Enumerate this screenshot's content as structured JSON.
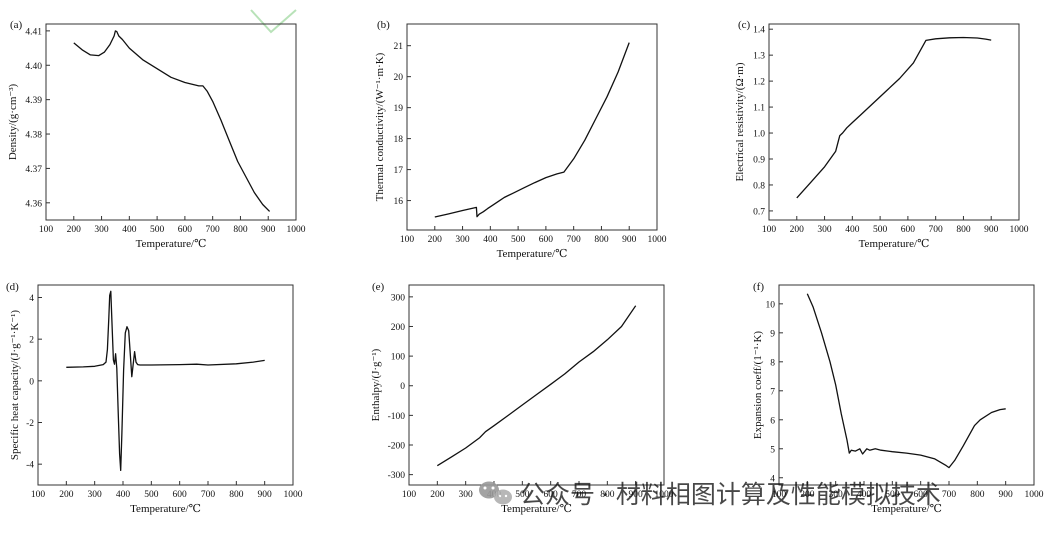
{
  "chart_data": [
    {
      "type": "line",
      "panel_label": "(a)",
      "xlabel": "Temperature/℃",
      "ylabel": "Density/(g·cm⁻³)",
      "xlim": [
        100,
        1000
      ],
      "ylim": [
        4.355,
        4.412
      ],
      "xticks": [
        100,
        200,
        300,
        400,
        500,
        600,
        700,
        800,
        900,
        1000
      ],
      "xtick_labels": [
        "100",
        "200",
        "300",
        "400",
        "500",
        "600",
        "700",
        "800",
        "900",
        "1000"
      ],
      "yticks": [
        4.36,
        4.37,
        4.38,
        4.39,
        4.4,
        4.41
      ],
      "ytick_labels": [
        "4.36",
        "4.37",
        "4.38",
        "4.39",
        "4.40",
        "4.41"
      ],
      "series": [
        {
          "x": [
            200,
            230,
            260,
            290,
            310,
            330,
            345,
            350,
            355,
            362,
            375,
            400,
            450,
            500,
            550,
            600,
            650,
            665,
            680,
            700,
            730,
            760,
            790,
            820,
            850,
            880,
            905
          ],
          "y": [
            4.4065,
            4.4045,
            4.403,
            4.4028,
            4.4038,
            4.406,
            4.4085,
            4.41,
            4.4098,
            4.4085,
            4.4075,
            4.405,
            4.4015,
            4.399,
            4.3965,
            4.395,
            4.394,
            4.394,
            4.3925,
            4.3895,
            4.384,
            4.378,
            4.372,
            4.3675,
            4.363,
            4.3595,
            4.3575
          ]
        }
      ]
    },
    {
      "type": "line",
      "panel_label": "(b)",
      "xlabel": "Temperature/℃",
      "ylabel": "Thermal conductivity/(W⁻¹·m·K)",
      "xlim": [
        100,
        1000
      ],
      "ylim": [
        15.05,
        21.7
      ],
      "xticks": [
        100,
        200,
        300,
        400,
        500,
        600,
        700,
        800,
        900,
        1000
      ],
      "xtick_labels": [
        "100",
        "200",
        "300",
        "400",
        "500",
        "600",
        "700",
        "800",
        "900",
        "1000"
      ],
      "yticks": [
        16,
        17,
        18,
        19,
        20,
        21
      ],
      "ytick_labels": [
        "16",
        "17",
        "18",
        "19",
        "20",
        "21"
      ],
      "series": [
        {
          "x": [
            200,
            250,
            300,
            340,
            350,
            352,
            360,
            375,
            390,
            410,
            430,
            450,
            480,
            520,
            560,
            600,
            640,
            665,
            700,
            740,
            780,
            820,
            860,
            900
          ],
          "y": [
            15.47,
            15.57,
            15.68,
            15.76,
            15.78,
            15.48,
            15.56,
            15.64,
            15.74,
            15.86,
            15.98,
            16.1,
            16.23,
            16.41,
            16.58,
            16.74,
            16.86,
            16.92,
            17.35,
            17.95,
            18.65,
            19.35,
            20.15,
            21.1
          ]
        }
      ]
    },
    {
      "type": "line",
      "panel_label": "(c)",
      "xlabel": "Temperature/℃",
      "ylabel": "Electrical resistivity/(Ω·m)",
      "xlim": [
        100,
        1000
      ],
      "ylim": [
        0.665,
        1.42
      ],
      "xticks": [
        100,
        200,
        300,
        400,
        500,
        600,
        700,
        800,
        900,
        1000
      ],
      "xtick_labels": [
        "100",
        "200",
        "300",
        "400",
        "500",
        "600",
        "700",
        "800",
        "900",
        "1000"
      ],
      "yticks": [
        0.7,
        0.8,
        0.9,
        1.0,
        1.1,
        1.2,
        1.3,
        1.4
      ],
      "ytick_labels": [
        "0.7",
        "0.8",
        "0.9",
        "1.0",
        "1.1",
        "1.2",
        "1.3",
        "1.4"
      ],
      "series": [
        {
          "x": [
            200,
            250,
            300,
            340,
            350,
            355,
            365,
            380,
            400,
            430,
            470,
            520,
            570,
            620,
            665,
            700,
            750,
            800,
            850,
            880,
            900
          ],
          "y": [
            0.75,
            0.81,
            0.87,
            0.93,
            0.97,
            0.99,
            1.0,
            1.02,
            1.04,
            1.07,
            1.11,
            1.16,
            1.21,
            1.27,
            1.357,
            1.363,
            1.367,
            1.368,
            1.366,
            1.362,
            1.358
          ]
        }
      ]
    },
    {
      "type": "line",
      "panel_label": "(d)",
      "xlabel": "Temperature/℃",
      "ylabel": "Specific heat capacity/(J·g⁻¹·K⁻¹)",
      "xlim": [
        100,
        1000
      ],
      "ylim": [
        -5.0,
        4.6
      ],
      "xticks": [
        100,
        200,
        300,
        400,
        500,
        600,
        700,
        800,
        900,
        1000
      ],
      "xtick_labels": [
        "100",
        "200",
        "300",
        "400",
        "500",
        "600",
        "700",
        "800",
        "900",
        "1000"
      ],
      "yticks": [
        -4,
        -2,
        0,
        2,
        4
      ],
      "ytick_labels": [
        "-4",
        "-2",
        "0",
        "2",
        "4"
      ],
      "series": [
        {
          "x": [
            200,
            260,
            300,
            330,
            340,
            345,
            350,
            353,
            357,
            362,
            366,
            370,
            374,
            378,
            383,
            388,
            392,
            396,
            402,
            408,
            414,
            420,
            426,
            431,
            436,
            441,
            446,
            452,
            460,
            500,
            600,
            660,
            700,
            800,
            860,
            900
          ],
          "y": [
            0.65,
            0.67,
            0.7,
            0.78,
            0.9,
            1.5,
            3.0,
            4.1,
            4.3,
            2.5,
            1.0,
            0.8,
            1.3,
            0.6,
            -1.5,
            -3.5,
            -4.3,
            -2.5,
            0.5,
            2.3,
            2.6,
            2.4,
            1.2,
            0.2,
            0.8,
            1.4,
            0.9,
            0.78,
            0.76,
            0.76,
            0.78,
            0.8,
            0.76,
            0.82,
            0.9,
            0.98
          ]
        }
      ]
    },
    {
      "type": "line",
      "panel_label": "(e)",
      "xlabel": "Temperature/℃",
      "ylabel": "Enthalpy/(J·g⁻¹)",
      "xlim": [
        100,
        1000
      ],
      "ylim": [
        -335,
        340
      ],
      "xticks": [
        100,
        200,
        300,
        400,
        500,
        600,
        700,
        800,
        900,
        1000
      ],
      "xtick_labels": [
        "100",
        "200",
        "300",
        "400",
        "500",
        "600",
        "700",
        "800",
        "900",
        "1000"
      ],
      "yticks": [
        -300,
        -200,
        -100,
        0,
        100,
        200,
        300
      ],
      "ytick_labels": [
        "-300",
        "-200",
        "-100",
        "0",
        "100",
        "200",
        "300"
      ],
      "series": [
        {
          "x": [
            200,
            250,
            300,
            350,
            370,
            400,
            450,
            500,
            550,
            600,
            650,
            700,
            750,
            800,
            850,
            900
          ],
          "y": [
            -270,
            -240,
            -210,
            -175,
            -155,
            -135,
            -100,
            -65,
            -30,
            5,
            40,
            80,
            115,
            155,
            200,
            270
          ]
        }
      ]
    },
    {
      "type": "line",
      "panel_label": "(f)",
      "xlabel": "Temperature/℃",
      "ylabel": "Expansion coeff/(1⁻¹·K)",
      "xlim": [
        100,
        1000
      ],
      "ylim": [
        3.75,
        10.65
      ],
      "xticks": [
        100,
        200,
        300,
        400,
        500,
        600,
        700,
        800,
        900,
        1000
      ],
      "xtick_labels": [
        "100",
        "200",
        "300",
        "400",
        "500",
        "600",
        "700",
        "800",
        "900",
        "1000"
      ],
      "yticks": [
        4,
        5,
        6,
        7,
        8,
        9,
        10
      ],
      "ytick_labels": [
        "4",
        "5",
        "6",
        "7",
        "8",
        "9",
        "10"
      ],
      "series": [
        {
          "x": [
            200,
            220,
            250,
            280,
            300,
            320,
            340,
            348,
            355,
            370,
            385,
            395,
            410,
            420,
            440,
            460,
            500,
            550,
            600,
            650,
            690,
            700,
            720,
            750,
            790,
            810,
            850,
            880,
            900
          ],
          "y": [
            10.35,
            9.9,
            9.0,
            8.0,
            7.2,
            6.2,
            5.3,
            4.85,
            4.95,
            4.92,
            5.0,
            4.82,
            5.0,
            4.95,
            5.0,
            4.95,
            4.9,
            4.85,
            4.78,
            4.65,
            4.42,
            4.35,
            4.6,
            5.1,
            5.8,
            6.0,
            6.25,
            6.35,
            6.38
          ]
        }
      ]
    }
  ],
  "watermark": {
    "text": "公众号 · 材料相图计算及性能模拟技术",
    "icon": "wechat-official-account-icon"
  }
}
